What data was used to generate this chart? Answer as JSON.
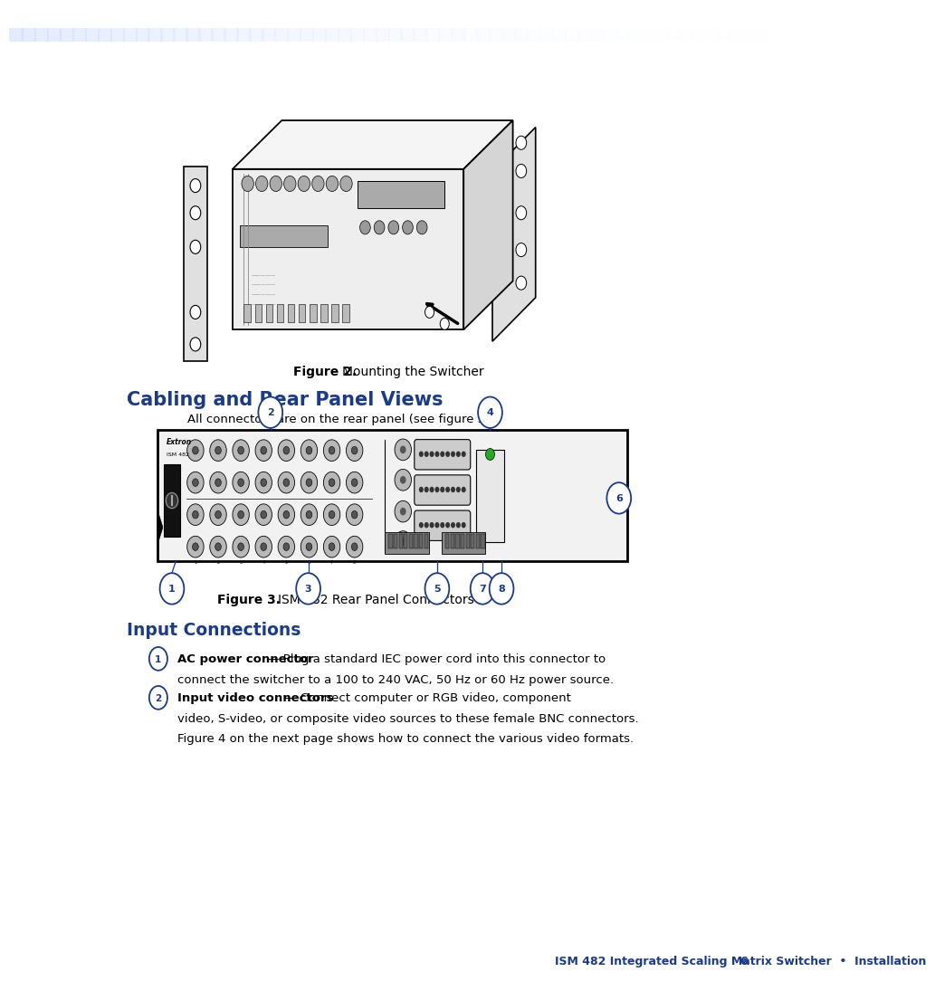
{
  "page_bg": "#ffffff",
  "section_title": "Cabling and Rear Panel Views",
  "section_title_color": "#1a3a8c",
  "section_intro": "All connectors are on the rear panel (see figure 3).",
  "subsection_title": "Input Connections",
  "subsection_title_color": "#1a3a8c",
  "footer_text": "ISM 482 Integrated Scaling Matrix Switcher  •  Installation",
  "footer_page": "6",
  "footer_color": "#1a3a8c",
  "item1_bold": "AC power connector",
  "item1_rest_line1": " — Plug a standard IEC power cord into this connector to",
  "item1_rest_line2": "connect the switcher to a 100 to 240 VAC, 50 Hz or 60 Hz power source.",
  "item2_bold": "Input video connectors",
  "item2_rest_line1": " — Connect computer or RGB video, component",
  "item2_rest_line2": "video, S-video, or composite video sources to these female BNC connectors.",
  "item2_rest_line3": "Figure 4 on the next page shows how to connect the various video formats.",
  "circle_color": "#1a3a8c",
  "callout_color": "#1a3a8c"
}
